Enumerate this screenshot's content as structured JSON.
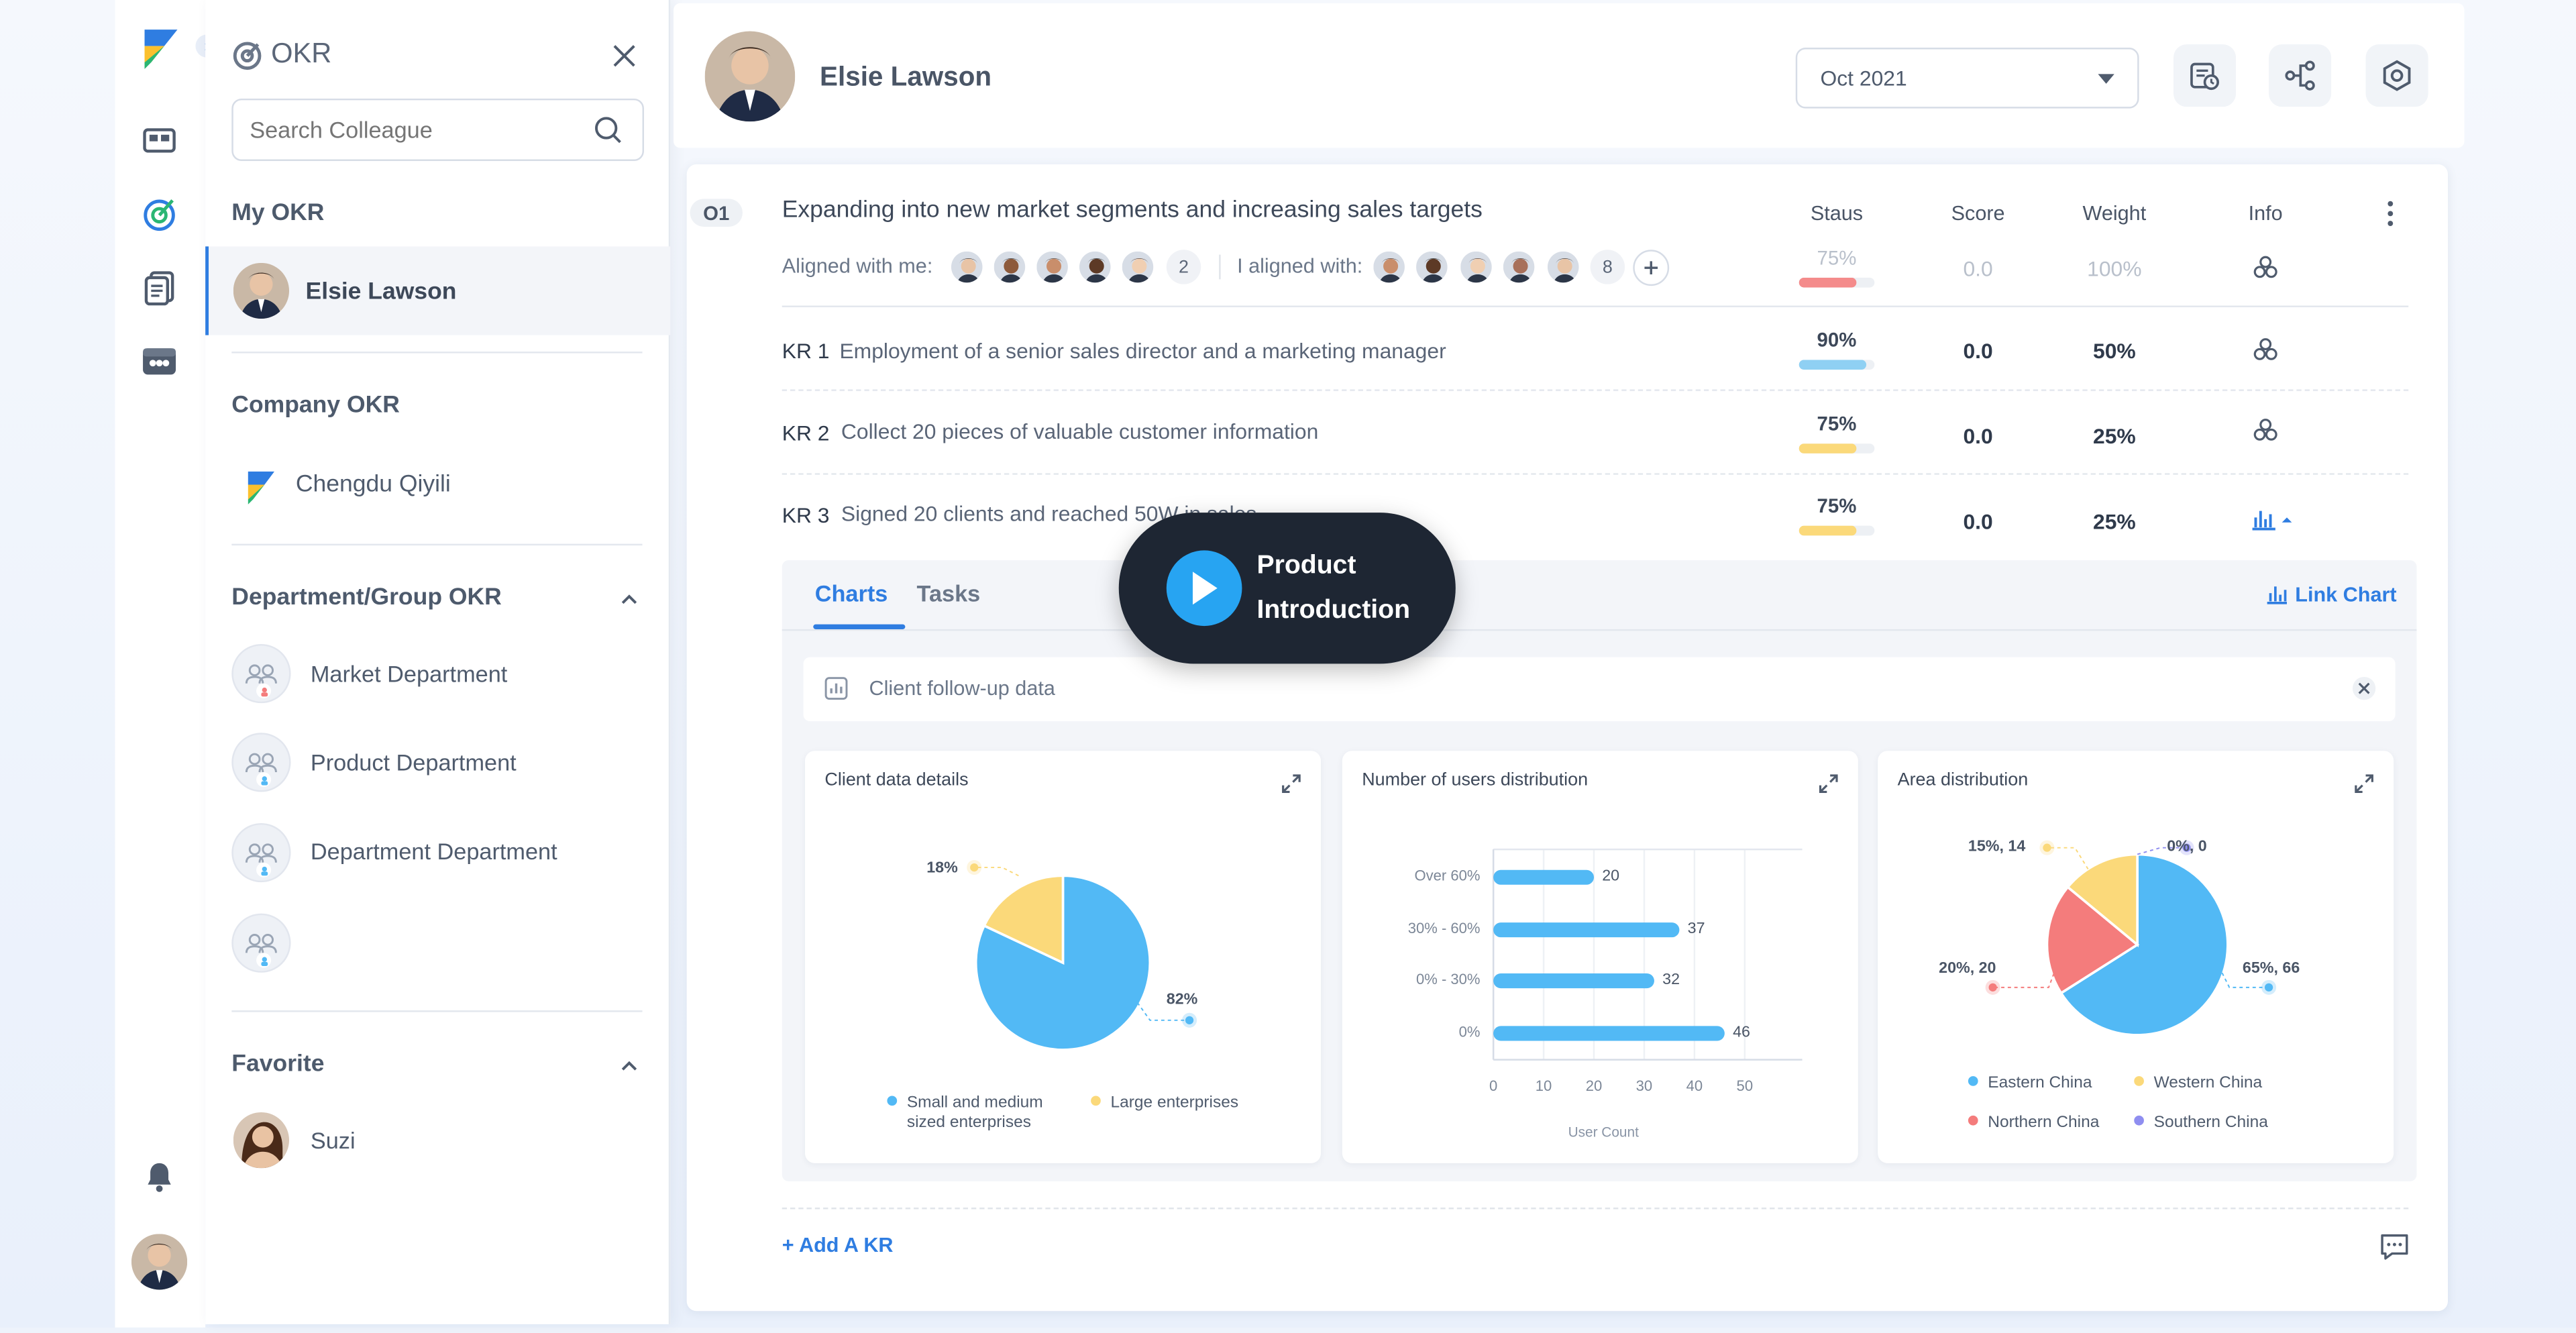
{
  "panel": {
    "title": "OKR",
    "search_placeholder": "Search Colleague",
    "my_okr": "My OKR",
    "my_okr_user": "Elsie Lawson",
    "company_okr": "Company OKR",
    "company_name": "Chengdu Qiyili",
    "dept_okr": "Department/Group OKR",
    "departments": [
      "Market Department",
      "Product Department",
      "Department Department",
      ""
    ],
    "favorite": "Favorite",
    "favorite_user": "Suzi"
  },
  "header": {
    "user": "Elsie Lawson",
    "month": "Oct 2021"
  },
  "objective": {
    "code": "O1",
    "title": "Expanding into new market segments and increasing sales targets",
    "aligned_with_me_label": "Aligned with me:",
    "aligned_with_me_count": "2",
    "i_aligned_label": "I aligned with:",
    "i_aligned_count": "8",
    "status": "75%",
    "score": "0.0",
    "weight": "100%"
  },
  "columns": {
    "status": "Staus",
    "score": "Score",
    "weight": "Weight",
    "info": "Info"
  },
  "key_results": [
    {
      "code": "KR 1",
      "text": "Employment of a senior sales director and a marketing manager",
      "status": "90%",
      "progress": 90,
      "color": "#8fd0f3",
      "score": "0.0",
      "weight": "50%"
    },
    {
      "code": "KR 2",
      "text": "Collect 20 pieces of valuable customer information",
      "status": "75%",
      "progress": 75,
      "color": "#fbd97a",
      "score": "0.0",
      "weight": "25%"
    },
    {
      "code": "KR 3",
      "text": "Signed 20 clients and reached 50W in sales",
      "status": "75%",
      "progress": 75,
      "color": "#fbd97a",
      "score": "0.0",
      "weight": "25%"
    }
  ],
  "objective_progress": 75,
  "objective_color": "#f48b8b",
  "tabs": {
    "charts": "Charts",
    "tasks": "Tasks",
    "link_chart": "Link Chart"
  },
  "data_source": "Client follow-up data",
  "overlay": {
    "line1": "Product",
    "line2": "Introduction"
  },
  "add_kr": "+ Add A KR",
  "colors": {
    "accent": "#2f7de1",
    "blue": "#52b9f5",
    "yellow": "#fbd97a",
    "red": "#f47c7c",
    "purple": "#8f8ef0"
  },
  "chart_data": [
    {
      "type": "pie",
      "title": "Client data details",
      "labels": [
        "Small and medium sized enterprises",
        "Large enterprises"
      ],
      "values": [
        82,
        18
      ],
      "value_labels": [
        "82%",
        "18%"
      ],
      "colors": [
        "#52b9f5",
        "#fbd97a"
      ],
      "legend_position": "bottom"
    },
    {
      "type": "bar",
      "orientation": "horizontal",
      "title": "Number of users distribution",
      "categories": [
        "Over 60%",
        "30% - 60%",
        "0% - 30%",
        "0%"
      ],
      "values": [
        20,
        37,
        32,
        46
      ],
      "xlabel": "User Count",
      "xlim": [
        0,
        50
      ],
      "xticks": [
        0,
        10,
        20,
        30,
        40,
        50
      ],
      "grid": true
    },
    {
      "type": "pie",
      "title": "Area distribution",
      "labels": [
        "Eastern China",
        "Western China",
        "Northern China",
        "Southern China"
      ],
      "values": [
        66,
        14,
        20,
        0
      ],
      "value_labels": [
        "65%, 66",
        "15%, 14",
        "20%, 20",
        "0%, 0"
      ],
      "colors": [
        "#52b9f5",
        "#fbd97a",
        "#f47c7c",
        "#8f8ef0"
      ],
      "legend_position": "bottom"
    }
  ]
}
